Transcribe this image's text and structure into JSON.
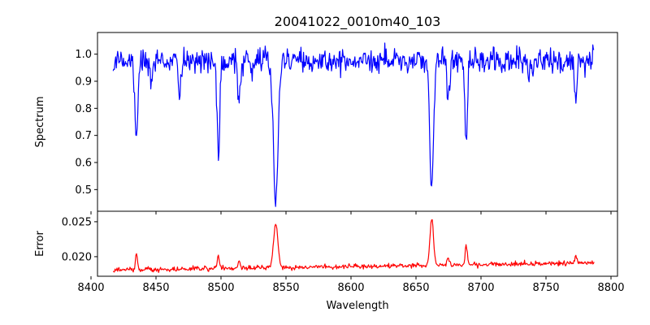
{
  "chart_data": {
    "title": "20041022_0010m40_103",
    "xlabel": "Wavelength",
    "type": "line",
    "x_range": [
      8417,
      8787
    ],
    "xlim": [
      8405,
      8805
    ],
    "xticks": [
      8400,
      8450,
      8500,
      8550,
      8600,
      8650,
      8700,
      8750,
      8800
    ],
    "xtick_labels": [
      "8400",
      "8450",
      "8500",
      "8550",
      "8600",
      "8650",
      "8700",
      "8750",
      "8800"
    ],
    "grid": false,
    "panels": [
      {
        "name": "spectrum",
        "ylabel": "Spectrum",
        "color": "#0000ff",
        "ylim": [
          0.42,
          1.08
        ],
        "yticks": [
          0.5,
          0.6,
          0.7,
          0.8,
          0.9,
          1.0
        ],
        "ytick_labels": [
          "0.5",
          "0.6",
          "0.7",
          "0.8",
          "0.9",
          "1.0"
        ],
        "continuum": 0.975,
        "noise": 0.022,
        "features": [
          {
            "center": 8433.5,
            "depth": 0.1,
            "width": 1.0
          },
          {
            "center": 8435.3,
            "depth": 0.26,
            "width": 0.9
          },
          {
            "center": 8446.8,
            "depth": 0.07,
            "width": 1.0
          },
          {
            "center": 8468.0,
            "depth": 0.14,
            "width": 0.9
          },
          {
            "center": 8498.0,
            "depth": 0.35,
            "width": 1.0
          },
          {
            "center": 8514.0,
            "depth": 0.15,
            "width": 1.0
          },
          {
            "center": 8524.5,
            "depth": 0.05,
            "width": 1.0
          },
          {
            "center": 8542.1,
            "depth": 0.52,
            "width": 1.8
          },
          {
            "center": 8662.1,
            "depth": 0.47,
            "width": 1.4
          },
          {
            "center": 8674.8,
            "depth": 0.13,
            "width": 1.0
          },
          {
            "center": 8688.6,
            "depth": 0.3,
            "width": 0.9
          },
          {
            "center": 8717.0,
            "depth": 0.05,
            "width": 1.0
          },
          {
            "center": 8736.8,
            "depth": 0.06,
            "width": 1.0
          },
          {
            "center": 8772.9,
            "depth": 0.14,
            "width": 0.9
          }
        ]
      },
      {
        "name": "error",
        "ylabel": "Error",
        "color": "#ff0000",
        "ylim": [
          0.0172,
          0.0265
        ],
        "yticks": [
          0.02,
          0.025
        ],
        "ytick_labels": [
          "0.020",
          "0.025"
        ],
        "continuum_start": 0.0181,
        "continuum_end": 0.0191,
        "noise": 0.00017,
        "features": [
          {
            "center": 8435.0,
            "height": 0.0022,
            "width": 0.8
          },
          {
            "center": 8498.0,
            "height": 0.0017,
            "width": 0.8
          },
          {
            "center": 8514.0,
            "height": 0.001,
            "width": 0.8
          },
          {
            "center": 8542.1,
            "height": 0.0062,
            "width": 1.7
          },
          {
            "center": 8662.1,
            "height": 0.0068,
            "width": 1.3
          },
          {
            "center": 8674.8,
            "height": 0.0012,
            "width": 0.8
          },
          {
            "center": 8688.6,
            "height": 0.003,
            "width": 0.8
          },
          {
            "center": 8772.9,
            "height": 0.0012,
            "width": 0.8
          }
        ]
      }
    ]
  }
}
